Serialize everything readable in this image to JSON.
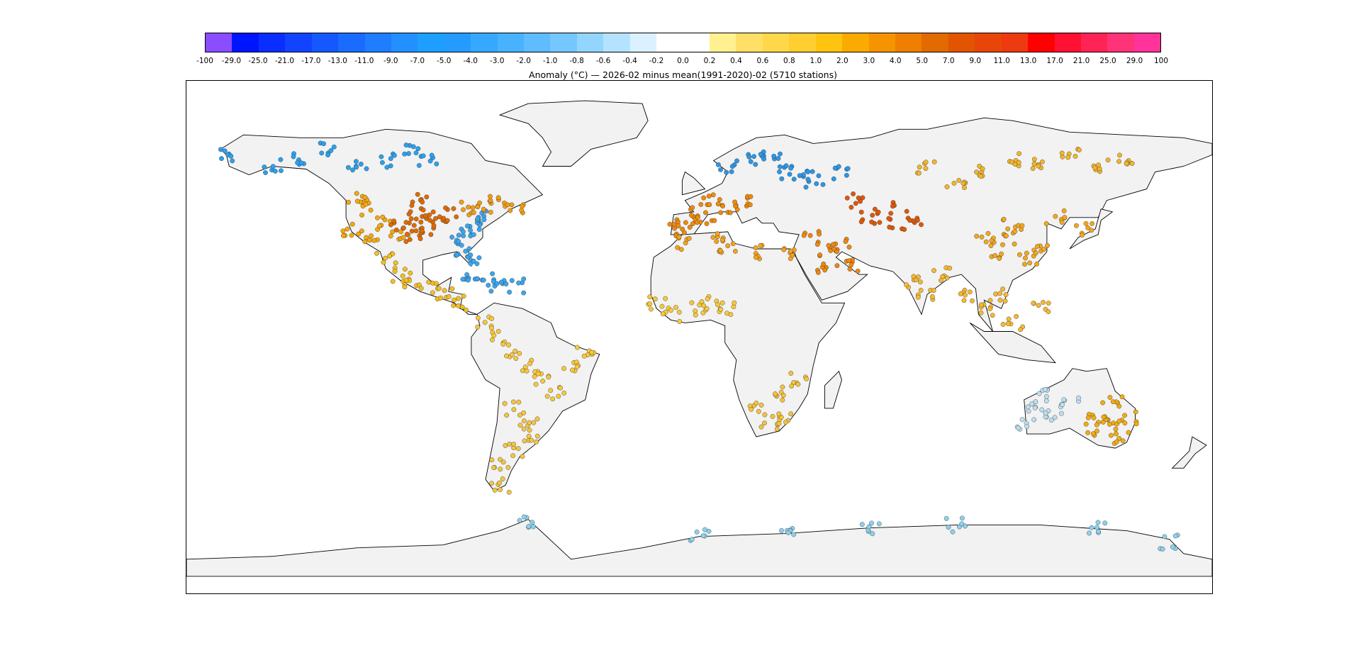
{
  "colorbar": {
    "ticks": [
      "-100",
      "-29.0",
      "-25.0",
      "-21.0",
      "-17.0",
      "-13.0",
      "-11.0",
      "-9.0",
      "-7.0",
      "-5.0",
      "-4.0",
      "-3.0",
      "-2.0",
      "-1.0",
      "-0.8",
      "-0.6",
      "-0.4",
      "-0.2",
      "0.0",
      "0.2",
      "0.4",
      "0.6",
      "0.8",
      "1.0",
      "2.0",
      "3.0",
      "4.0",
      "5.0",
      "7.0",
      "9.0",
      "11.0",
      "13.0",
      "17.0",
      "21.0",
      "25.0",
      "29.0",
      "100"
    ],
    "colors": [
      "#8a4dff",
      "#0015ff",
      "#0a2eff",
      "#1244ff",
      "#1658ff",
      "#1a6cff",
      "#1f7dff",
      "#2390ff",
      "#1d9fff",
      "#249cff",
      "#36a8ff",
      "#48b2ff",
      "#5ebcff",
      "#74c8ff",
      "#92d6ff",
      "#b5e3ff",
      "#dbf1ff",
      "#ffffff",
      "#ffffff",
      "#fff18f",
      "#ffe066",
      "#ffd84a",
      "#ffce30",
      "#ffc410",
      "#fbaa00",
      "#f59400",
      "#ee7f00",
      "#e26a00",
      "#e25400",
      "#e84608",
      "#ee3a10",
      "#ff0000",
      "#ff1133",
      "#ff2455",
      "#ff3377",
      "#ff3399"
    ],
    "title": "Anomaly (°C) — 2026-02 minus mean(1991-2020)-02 (5710 stations)"
  },
  "map": {
    "land_color": "#f2f2f2",
    "outline_color": "#000000",
    "station_count": "5710",
    "regions": [
      {
        "name": "alaska-canada-west",
        "color": "#29a1f0",
        "pts": [
          [
            -165,
            64
          ],
          [
            -150,
            60
          ],
          [
            -140,
            62
          ],
          [
            -130,
            66
          ],
          [
            -120,
            60
          ],
          [
            -110,
            62
          ],
          [
            -100,
            65
          ],
          [
            -95,
            62
          ]
        ]
      },
      {
        "name": "usa-west",
        "color": "#f5a80d",
        "pts": [
          [
            -122,
            38
          ],
          [
            -115,
            36
          ],
          [
            -110,
            40
          ],
          [
            -105,
            35
          ],
          [
            -118,
            45
          ],
          [
            -120,
            48
          ]
        ]
      },
      {
        "name": "usa-central",
        "color": "#e06b04",
        "pts": [
          [
            -105,
            40
          ],
          [
            -100,
            42
          ],
          [
            -97,
            38
          ],
          [
            -95,
            44
          ],
          [
            -100,
            35
          ],
          [
            -92,
            40
          ],
          [
            -98,
            48
          ],
          [
            -88,
            43
          ]
        ]
      },
      {
        "name": "usa-east",
        "color": "#3aa6ee",
        "pts": [
          [
            -85,
            35
          ],
          [
            -80,
            38
          ],
          [
            -78,
            40
          ],
          [
            -82,
            30
          ],
          [
            -75,
            42
          ],
          [
            -80,
            27
          ]
        ]
      },
      {
        "name": "canada-east",
        "color": "#f29d12",
        "pts": [
          [
            -75,
            46
          ],
          [
            -70,
            48
          ],
          [
            -65,
            45
          ],
          [
            -80,
            45
          ]
        ]
      },
      {
        "name": "mexico-central-america",
        "color": "#f5be20",
        "pts": [
          [
            -105,
            22
          ],
          [
            -100,
            20
          ],
          [
            -95,
            18
          ],
          [
            -90,
            15
          ],
          [
            -85,
            12
          ],
          [
            -110,
            28
          ]
        ]
      },
      {
        "name": "caribbean",
        "color": "#3aa6ee",
        "pts": [
          [
            -80,
            22
          ],
          [
            -75,
            20
          ],
          [
            -70,
            18
          ],
          [
            -65,
            18
          ]
        ]
      },
      {
        "name": "south-america-north",
        "color": "#f7c83a",
        "pts": [
          [
            -75,
            5
          ],
          [
            -70,
            0
          ],
          [
            -65,
            -5
          ],
          [
            -60,
            -10
          ],
          [
            -55,
            -15
          ],
          [
            -50,
            -20
          ],
          [
            -45,
            -10
          ],
          [
            -40,
            -5
          ]
        ]
      },
      {
        "name": "south-america-south",
        "color": "#f4c542",
        "pts": [
          [
            -65,
            -25
          ],
          [
            -60,
            -30
          ],
          [
            -58,
            -35
          ],
          [
            -65,
            -40
          ],
          [
            -70,
            -45
          ],
          [
            -70,
            -52
          ]
        ]
      },
      {
        "name": "scandinavia-russia-west",
        "color": "#2b97e8",
        "pts": [
          [
            10,
            60
          ],
          [
            20,
            62
          ],
          [
            30,
            58
          ],
          [
            40,
            56
          ],
          [
            25,
            65
          ],
          [
            35,
            55
          ],
          [
            50,
            58
          ]
        ]
      },
      {
        "name": "europe-west",
        "color": "#f08a0a",
        "pts": [
          [
            -5,
            40
          ],
          [
            0,
            45
          ],
          [
            5,
            48
          ],
          [
            10,
            45
          ],
          [
            15,
            48
          ],
          [
            -8,
            38
          ],
          [
            2,
            42
          ]
        ]
      },
      {
        "name": "north-africa",
        "color": "#f4a21a",
        "pts": [
          [
            -5,
            33
          ],
          [
            5,
            35
          ],
          [
            10,
            32
          ],
          [
            20,
            30
          ],
          [
            30,
            30
          ]
        ]
      },
      {
        "name": "middle-east",
        "color": "#ee8810",
        "pts": [
          [
            40,
            35
          ],
          [
            45,
            30
          ],
          [
            50,
            32
          ],
          [
            55,
            25
          ],
          [
            45,
            25
          ]
        ]
      },
      {
        "name": "central-asia",
        "color": "#e05808",
        "pts": [
          [
            60,
            42
          ],
          [
            65,
            45
          ],
          [
            70,
            40
          ],
          [
            75,
            42
          ],
          [
            55,
            48
          ]
        ]
      },
      {
        "name": "siberia",
        "color": "#f3b52a",
        "pts": [
          [
            80,
            60
          ],
          [
            90,
            55
          ],
          [
            100,
            58
          ],
          [
            110,
            62
          ],
          [
            120,
            60
          ],
          [
            130,
            65
          ],
          [
            140,
            60
          ],
          [
            150,
            62
          ]
        ]
      },
      {
        "name": "china-east-asia",
        "color": "#f3a71c",
        "pts": [
          [
            100,
            35
          ],
          [
            105,
            30
          ],
          [
            110,
            35
          ],
          [
            115,
            28
          ],
          [
            120,
            32
          ],
          [
            110,
            40
          ],
          [
            125,
            42
          ],
          [
            135,
            38
          ]
        ]
      },
      {
        "name": "india-southeast-asia",
        "color": "#f6b830",
        "pts": [
          [
            75,
            20
          ],
          [
            80,
            15
          ],
          [
            85,
            22
          ],
          [
            95,
            15
          ],
          [
            100,
            10
          ],
          [
            105,
            15
          ],
          [
            110,
            5
          ],
          [
            120,
            10
          ]
        ]
      },
      {
        "name": "west-africa",
        "color": "#f7c83a",
        "pts": [
          [
            -15,
            12
          ],
          [
            -10,
            8
          ],
          [
            0,
            10
          ],
          [
            5,
            12
          ],
          [
            10,
            10
          ]
        ]
      },
      {
        "name": "southern-africa",
        "color": "#f5c23a",
        "pts": [
          [
            20,
            -25
          ],
          [
            25,
            -30
          ],
          [
            30,
            -28
          ],
          [
            28,
            -20
          ],
          [
            35,
            -15
          ]
        ]
      },
      {
        "name": "australia-west",
        "color": "#bcdff2",
        "pts": [
          [
            115,
            -30
          ],
          [
            118,
            -25
          ],
          [
            120,
            -20
          ],
          [
            125,
            -28
          ],
          [
            130,
            -22
          ]
        ]
      },
      {
        "name": "australia-east",
        "color": "#f2ac12",
        "pts": [
          [
            140,
            -28
          ],
          [
            145,
            -30
          ],
          [
            150,
            -28
          ],
          [
            148,
            -35
          ],
          [
            145,
            -22
          ],
          [
            138,
            -32
          ]
        ]
      },
      {
        "name": "antarctica",
        "color": "#8dd0ee",
        "pts": [
          [
            -60,
            -65
          ],
          [
            0,
            -70
          ],
          [
            30,
            -68
          ],
          [
            60,
            -67
          ],
          [
            90,
            -66
          ],
          [
            140,
            -67
          ],
          [
            165,
            -72
          ]
        ]
      }
    ]
  }
}
